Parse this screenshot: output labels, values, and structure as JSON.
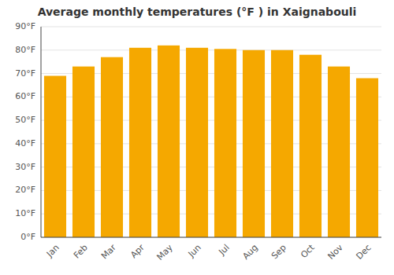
{
  "chart_data": {
    "type": "bar",
    "title": "Average monthly temperatures (°F ) in Xaignabouli",
    "categories": [
      "Jan",
      "Feb",
      "Mar",
      "Apr",
      "May",
      "Jun",
      "Jul",
      "Aug",
      "Sep",
      "Oct",
      "Nov",
      "Dec"
    ],
    "values": [
      69,
      73,
      77,
      81,
      82,
      81,
      80.5,
      80,
      80,
      78,
      73,
      68
    ],
    "color": "#F5A800",
    "ylim": [
      0,
      90
    ],
    "yticks": [
      {
        "value": 0,
        "label": "0°F"
      },
      {
        "value": 10,
        "label": "10°F"
      },
      {
        "value": 20,
        "label": "20°F"
      },
      {
        "value": 30,
        "label": "30°F"
      },
      {
        "value": 40,
        "label": "40°F"
      },
      {
        "value": 50,
        "label": "50°F"
      },
      {
        "value": 60,
        "label": "60°F"
      },
      {
        "value": 70,
        "label": "70°F"
      },
      {
        "value": 80,
        "label": "80°F"
      },
      {
        "value": 90,
        "label": "90°F"
      }
    ],
    "grid": true
  }
}
